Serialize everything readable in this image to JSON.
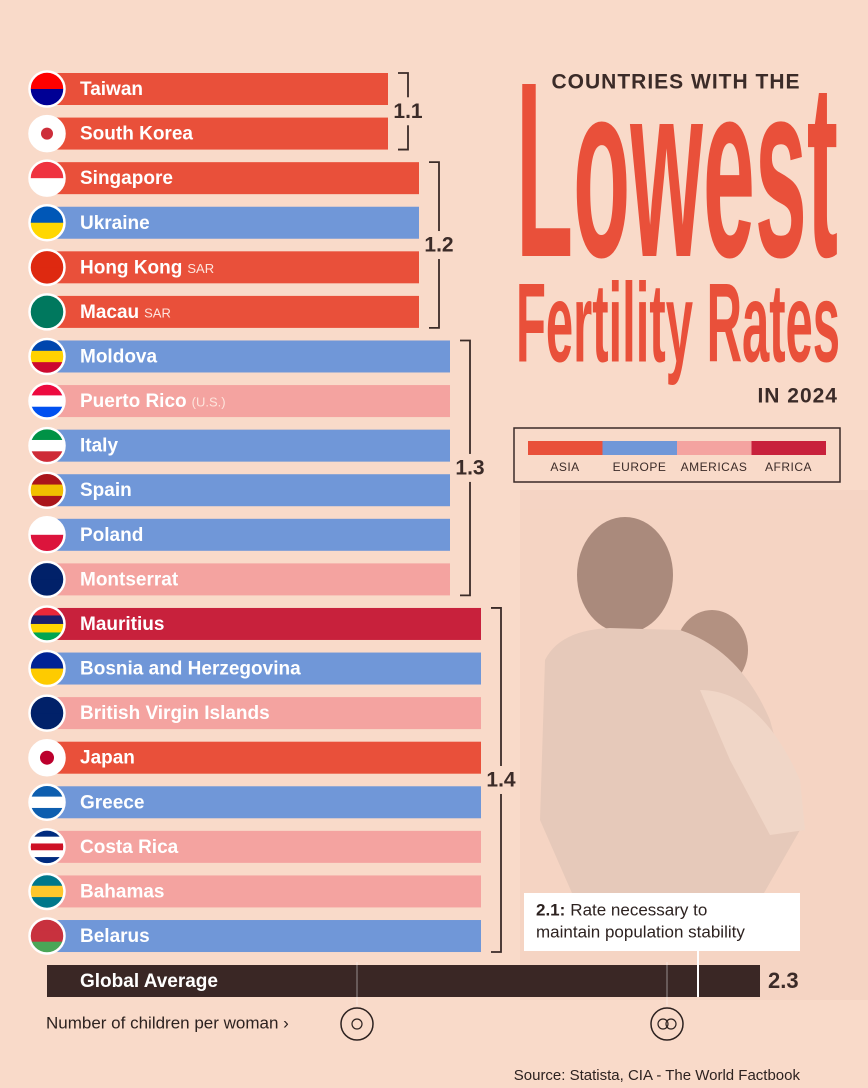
{
  "chart_data": {
    "type": "bar",
    "orientation": "horizontal",
    "title_lines": [
      "COUNTRIES WITH THE",
      "Lowest",
      "Fertility Rates",
      "IN 2024"
    ],
    "categories": [
      "Taiwan",
      "South Korea",
      "Singapore",
      "Ukraine",
      "Hong Kong",
      "Macau",
      "Moldova",
      "Puerto Rico",
      "Italy",
      "Spain",
      "Poland",
      "Montserrat",
      "Mauritius",
      "Bosnia and Herzegovina",
      "British Virgin Islands",
      "Japan",
      "Greece",
      "Costa Rica",
      "Bahamas",
      "Belarus"
    ],
    "category_notes": [
      null,
      null,
      null,
      null,
      "SAR",
      "SAR",
      null,
      "(U.S.)",
      null,
      null,
      null,
      null,
      null,
      null,
      null,
      null,
      null,
      null,
      null,
      null
    ],
    "values": [
      1.1,
      1.1,
      1.2,
      1.2,
      1.2,
      1.2,
      1.3,
      1.3,
      1.3,
      1.3,
      1.3,
      1.3,
      1.4,
      1.4,
      1.4,
      1.4,
      1.4,
      1.4,
      1.4,
      1.4
    ],
    "regions": [
      "ASIA",
      "ASIA",
      "ASIA",
      "EUROPE",
      "ASIA",
      "ASIA",
      "EUROPE",
      "AMERICAS",
      "EUROPE",
      "EUROPE",
      "EUROPE",
      "AMERICAS",
      "AFRICA",
      "EUROPE",
      "AMERICAS",
      "ASIA",
      "EUROPE",
      "AMERICAS",
      "AMERICAS",
      "EUROPE"
    ],
    "groups": [
      1.1,
      1.2,
      1.3,
      1.4
    ],
    "legend": [
      {
        "name": "ASIA",
        "color": "#e9503a"
      },
      {
        "name": "EUROPE",
        "color": "#7097d8"
      },
      {
        "name": "AMERICAS",
        "color": "#f4a3a0"
      },
      {
        "name": "AFRICA",
        "color": "#c8213c"
      }
    ],
    "average": {
      "label": "Global Average",
      "value": 2.3,
      "color": "#3a2725"
    },
    "annotation": {
      "value": 2.1,
      "label": "2.1:",
      "text_lines": [
        "Rate necessary to",
        "maintain population stability"
      ]
    },
    "xlim": [
      0,
      2.6
    ],
    "xticks": [
      1,
      2
    ],
    "x_label": "Number of children per woman ›",
    "source": "Source: Statista,  CIA - The World Factbook"
  }
}
